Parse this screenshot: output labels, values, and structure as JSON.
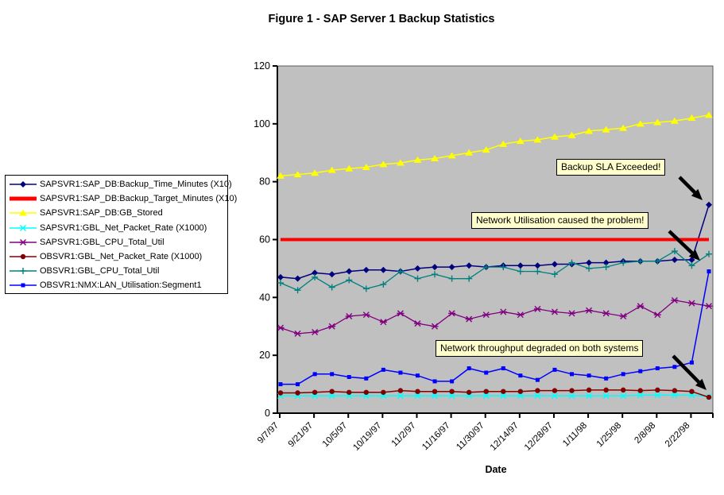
{
  "title": "Figure 1 - SAP Server 1 Backup Statistics",
  "x_axis_title": "Date",
  "annotations": [
    {
      "text": "Backup SLA Exceeded!"
    },
    {
      "text": "Network Utilisation caused the problem!"
    },
    {
      "text": "Network throughput degraded on both systems"
    }
  ],
  "chart_data": {
    "type": "line",
    "title": "Figure 1 - SAP Server 1 Backup Statistics",
    "xlabel": "Date",
    "ylabel": "",
    "ylim": [
      0,
      120
    ],
    "yticks": [
      0,
      20,
      40,
      60,
      80,
      100,
      120
    ],
    "plot_bg": "#C0C0C0",
    "annotation_bg": "#FFFFCC",
    "legend_position": "left",
    "grid": false,
    "x": [
      "9/7/97",
      "9/14/97",
      "9/21/97",
      "9/28/97",
      "10/5/97",
      "10/12/97",
      "10/19/97",
      "10/26/97",
      "11/2/97",
      "11/9/97",
      "11/16/97",
      "11/23/97",
      "11/30/97",
      "12/7/97",
      "12/14/97",
      "12/21/97",
      "12/28/97",
      "1/4/98",
      "1/11/98",
      "1/18/98",
      "1/25/98",
      "2/1/98",
      "2/8/98",
      "2/15/98",
      "2/22/98",
      "3/1/98"
    ],
    "x_labels_shown": [
      "9/7/97",
      "9/21/97",
      "10/5/97",
      "10/19/97",
      "11/2/97",
      "11/16/97",
      "11/30/97",
      "12/14/97",
      "12/28/97",
      "1/11/98",
      "1/25/98",
      "2/8/98",
      "2/22/98"
    ],
    "series": [
      {
        "name": "SAPSVR1:SAP_DB:Backup_Time_Minutes (X10)",
        "color": "#000080",
        "marker": "diamond",
        "line_width": 1.5,
        "values": [
          47,
          46.5,
          48.5,
          48,
          49,
          49.5,
          49.5,
          49,
          50,
          50.5,
          50.5,
          51,
          50.5,
          51,
          51,
          51,
          51.5,
          51.5,
          52,
          52,
          52.5,
          52.5,
          52.5,
          53,
          53,
          72
        ]
      },
      {
        "name": "SAPSVR1:SAP_DB:Backup_Target_Minutes (X10)",
        "color": "#FF0000",
        "marker": "none",
        "line_width": 4,
        "values": [
          60,
          60,
          60,
          60,
          60,
          60,
          60,
          60,
          60,
          60,
          60,
          60,
          60,
          60,
          60,
          60,
          60,
          60,
          60,
          60,
          60,
          60,
          60,
          60,
          60,
          60
        ]
      },
      {
        "name": "SAPSVR1:SAP_DB:GB_Stored",
        "color": "#FFFF00",
        "marker": "triangle",
        "line_width": 1.5,
        "values": [
          82,
          82.5,
          83,
          84,
          84.5,
          85,
          86,
          86.5,
          87.5,
          88,
          89,
          90,
          91,
          93,
          94,
          94.5,
          95.5,
          96,
          97.5,
          98,
          98.5,
          100,
          100.5,
          101,
          102,
          103
        ]
      },
      {
        "name": "SAPSVR1:GBL_Net_Packet_Rate (X1000)",
        "color": "#00FFFF",
        "marker": "x",
        "line_width": 1.5,
        "values": [
          6,
          6,
          6,
          6,
          6,
          6,
          6,
          6,
          6,
          6,
          6,
          6,
          6,
          6,
          6,
          6,
          6,
          6,
          6,
          6,
          6,
          6.2,
          6.2,
          6.2,
          6.2,
          5.8
        ]
      },
      {
        "name": "SAPSVR1:GBL_CPU_Total_Util",
        "color": "#800080",
        "marker": "star",
        "line_width": 1.3,
        "values": [
          29.5,
          27.5,
          28,
          30,
          33.5,
          34,
          31.5,
          34.5,
          31,
          30,
          34.5,
          32.5,
          34,
          35,
          34,
          36,
          35,
          34.5,
          35.5,
          34.5,
          33.5,
          37,
          34,
          39,
          38,
          37
        ]
      },
      {
        "name": "OBSVR1:GBL_Net_Packet_Rate (X1000)",
        "color": "#800000",
        "marker": "circle",
        "line_width": 1.5,
        "values": [
          7,
          7,
          7.2,
          7.5,
          7.2,
          7.2,
          7.2,
          7.8,
          7.5,
          7.5,
          7.5,
          7.2,
          7.5,
          7.5,
          7.5,
          7.8,
          7.8,
          7.8,
          8,
          8,
          8,
          7.8,
          8,
          7.8,
          7.5,
          5.5
        ]
      },
      {
        "name": "OBSVR1:GBL_CPU_Total_Util",
        "color": "#008080",
        "marker": "plus",
        "line_width": 1.3,
        "values": [
          45,
          42.5,
          47,
          43.5,
          46,
          43,
          44.5,
          49,
          46.5,
          48,
          46.5,
          46.5,
          50.5,
          50.5,
          49,
          49,
          48,
          52,
          50,
          50.5,
          52,
          52.5,
          52.5,
          56,
          51,
          55
        ]
      },
      {
        "name": "OBSVR1:NMX:LAN_Utilisation:Segment1",
        "color": "#0000FF",
        "marker": "square",
        "line_width": 1.5,
        "values": [
          10,
          10,
          13.5,
          13.5,
          12.5,
          12,
          15,
          14,
          13,
          11,
          11,
          15.5,
          14,
          15.5,
          13,
          11.5,
          15,
          13.5,
          13,
          12,
          13.5,
          14.5,
          15.5,
          16,
          17.5,
          49
        ]
      }
    ]
  }
}
